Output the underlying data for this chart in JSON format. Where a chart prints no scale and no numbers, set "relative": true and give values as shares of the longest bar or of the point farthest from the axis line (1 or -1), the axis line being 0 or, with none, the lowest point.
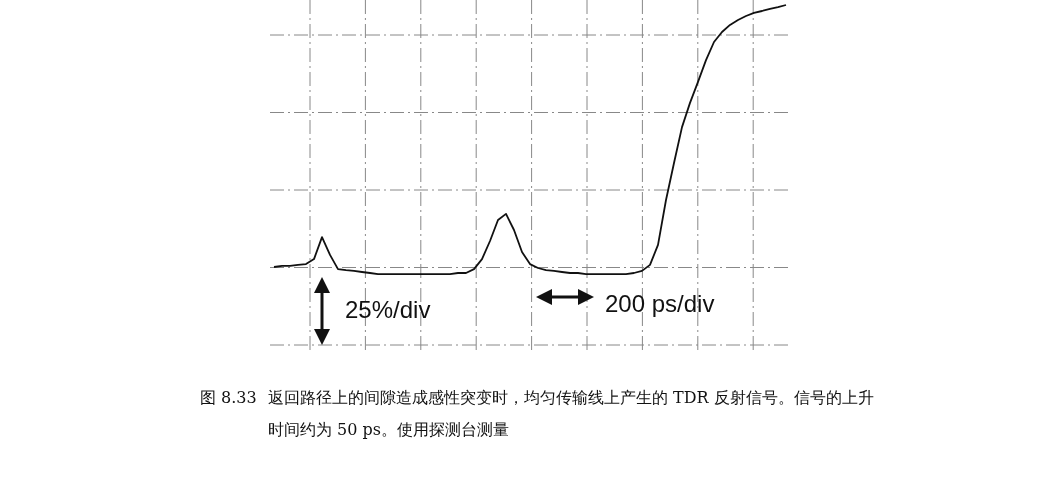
{
  "chart_data": {
    "type": "line",
    "relative": true,
    "grid": true,
    "line_style": "solid",
    "marker": "none",
    "categories": [
      null,
      null,
      null,
      null,
      null,
      null,
      null,
      null,
      null,
      null,
      null,
      null,
      null,
      null,
      null,
      null,
      null,
      null,
      null,
      null,
      null,
      null,
      null,
      null,
      null,
      null,
      null,
      null,
      null,
      null,
      null,
      null,
      null,
      null,
      null,
      null,
      null,
      null,
      null,
      null,
      null,
      null,
      null,
      null,
      null,
      null,
      null,
      null,
      null,
      null,
      null,
      null,
      null,
      null,
      null,
      null,
      null,
      null,
      null,
      null,
      null,
      null,
      null,
      null,
      null
    ],
    "series": [
      {
        "color": "#111111",
        "values": [
          0.002,
          0.006,
          0.006,
          0.01,
          0.013,
          0.032,
          0.116,
          0.048,
          -0.006,
          -0.01,
          -0.013,
          -0.017,
          -0.021,
          -0.025,
          -0.025,
          -0.025,
          -0.025,
          -0.025,
          -0.025,
          -0.025,
          -0.025,
          -0.025,
          -0.025,
          -0.021,
          -0.021,
          -0.006,
          0.032,
          0.101,
          0.181,
          0.204,
          0.143,
          0.059,
          0.013,
          -0.002,
          -0.01,
          -0.013,
          -0.017,
          -0.021,
          -0.021,
          -0.025,
          -0.025,
          -0.025,
          -0.025,
          -0.025,
          -0.025,
          -0.021,
          -0.013,
          0.01,
          0.086,
          0.257,
          0.398,
          0.535,
          0.627,
          0.707,
          0.79,
          0.859,
          0.897,
          0.924,
          0.943,
          0.958,
          0.97,
          0.977,
          0.985,
          0.992,
          1
        ]
      }
    ],
    "annotations": [
      "25%/div",
      "200 ps/div",
      "图 8.33",
      "返回路径上的间隙造成感性突变时，均匀传输线上产生的 TDR 反射信号。信号的上升时间约为 50 ps。使用探测台测量"
    ]
  }
}
